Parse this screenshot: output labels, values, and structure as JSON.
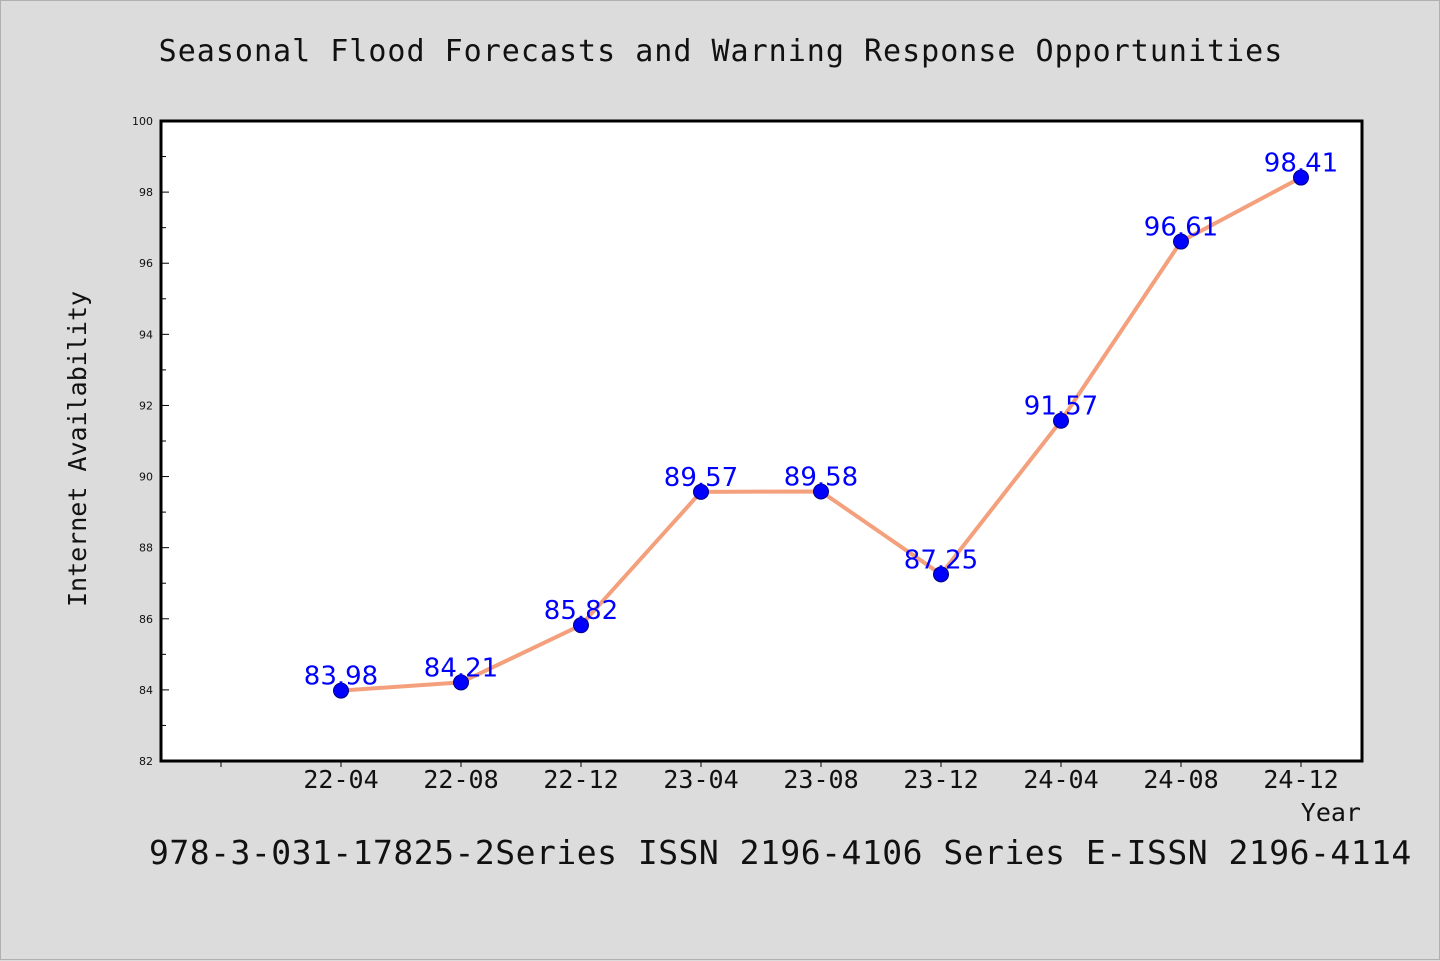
{
  "title": "Seasonal Flood Forecasts and Warning Response Opportunities",
  "footer": "978-3-031-17825-2Series ISSN 2196-4106 Series E-ISSN 2196-4114",
  "chart_data": {
    "type": "line",
    "title": "Seasonal Flood Forecasts and Warning Response Opportunities",
    "xlabel": "Year",
    "ylabel": "Internet Availability",
    "categories": [
      "22-04",
      "22-08",
      "22-12",
      "23-04",
      "23-08",
      "23-12",
      "24-04",
      "24-08",
      "24-12"
    ],
    "series": [
      {
        "values": [
          83.98,
          84.21,
          85.82,
          89.57,
          89.58,
          87.25,
          91.57,
          96.61,
          98.41
        ],
        "labels": [
          "83.98",
          "84.21",
          "85.82",
          "89.57",
          "89.58",
          "87.25",
          "91.57",
          "96.61",
          "98.41"
        ]
      }
    ],
    "ylim": [
      82,
      100
    ],
    "yticks": [
      "82",
      "84",
      "86",
      "88",
      "90",
      "92",
      "94",
      "96",
      "98",
      "100"
    ],
    "grid": false,
    "line_color": "#f4a07c",
    "marker_color": "#0000ff",
    "label_color": "#0000ff"
  }
}
